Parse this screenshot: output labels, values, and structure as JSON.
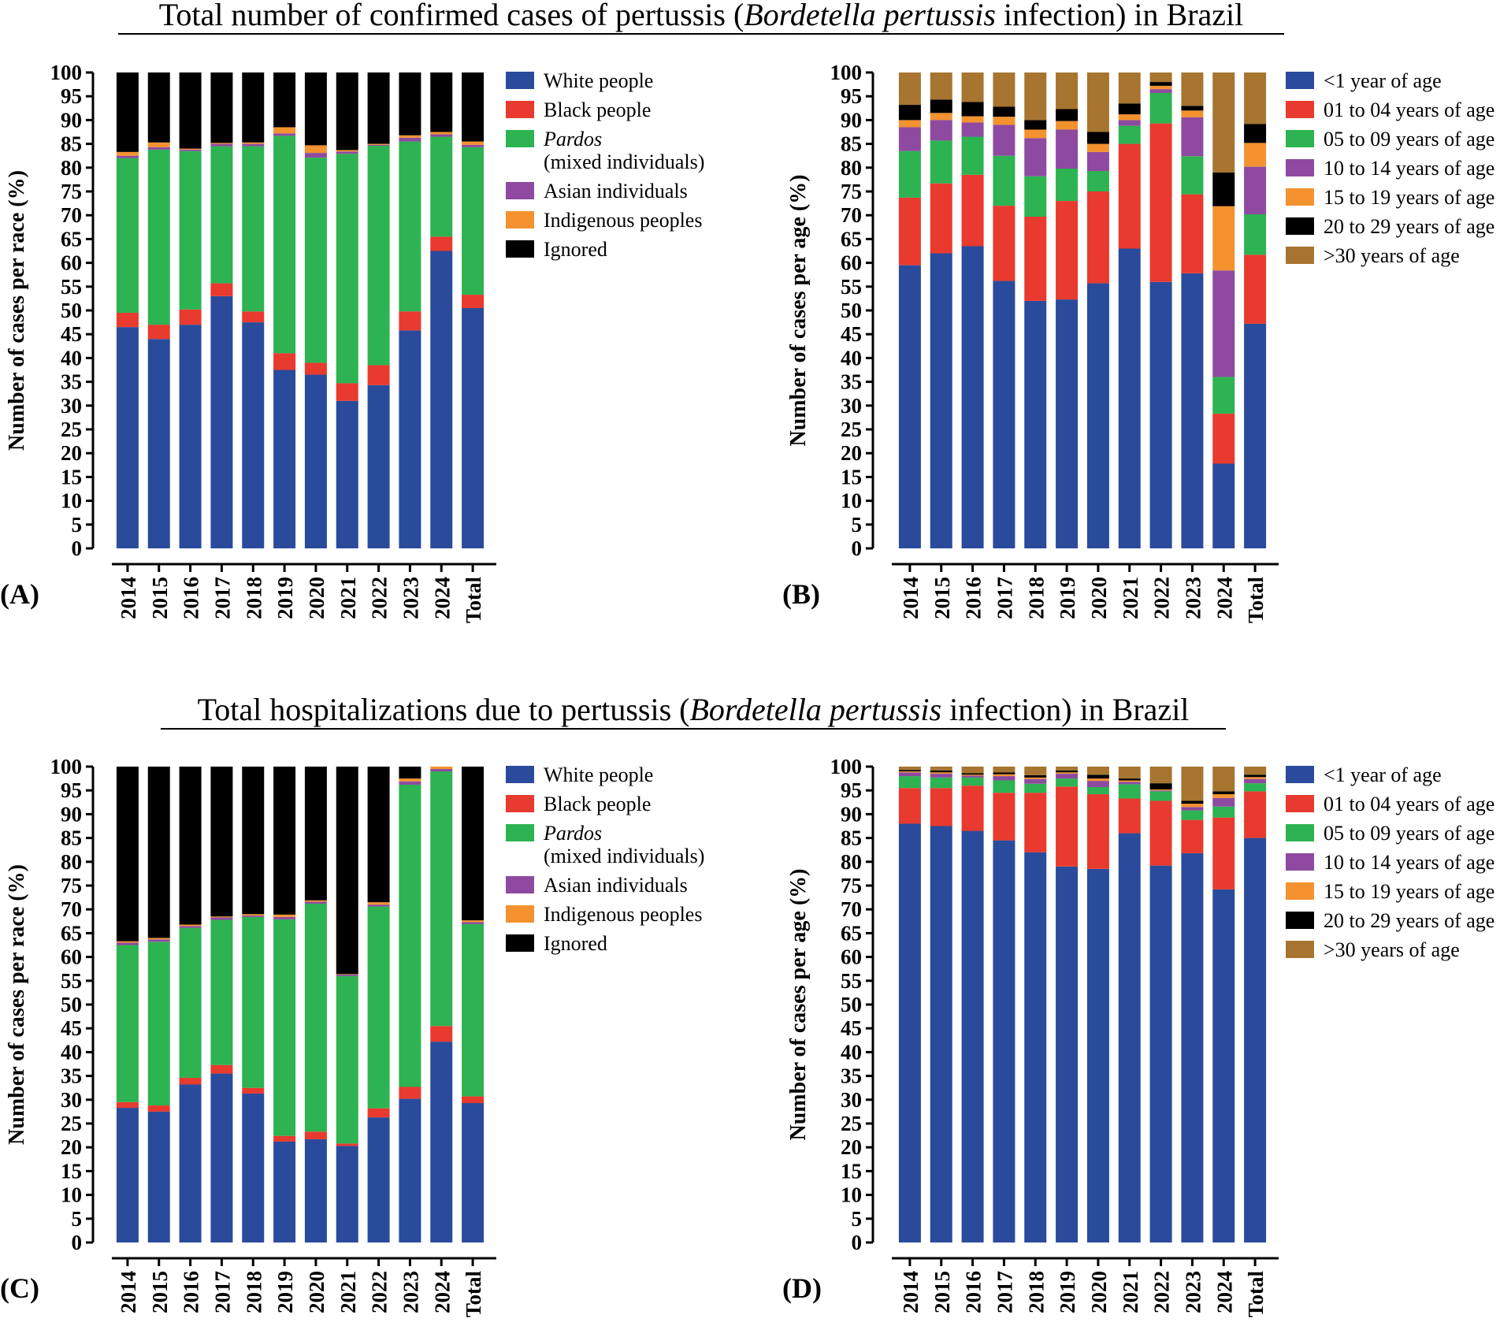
{
  "titles": {
    "top": {
      "pre": "Total number of confirmed cases of pertussis (",
      "italic": "Bordetella pertussis",
      "post": " infection) in Brazil"
    },
    "bottom": {
      "pre": "Total hospitalizations due to pertussis (",
      "italic": "Bordetella pertussis",
      "post": " infection) in Brazil"
    }
  },
  "colors": {
    "race": [
      "#2a4b9b",
      "#e83a2e",
      "#2db352",
      "#8e4aa0",
      "#f3922f",
      "#000000"
    ],
    "age": [
      "#2a4b9b",
      "#e83a2e",
      "#2db352",
      "#8e4aa0",
      "#f3922f",
      "#000000",
      "#a77530"
    ]
  },
  "race_legend": [
    {
      "label": "White people",
      "italic": false
    },
    {
      "label": "Black people",
      "italic": false
    },
    {
      "label": "Pardos",
      "italic": true,
      "label2": "(mixed individuals)"
    },
    {
      "label": "Asian individuals",
      "italic": false
    },
    {
      "label": "Indigenous peoples",
      "italic": false
    },
    {
      "label": "Ignored",
      "italic": false
    }
  ],
  "age_legend": [
    {
      "label": "<1 year of age"
    },
    {
      "label": "01 to 04 years of age"
    },
    {
      "label": "05 to 09 years of age"
    },
    {
      "label": "10 to 14 years of age"
    },
    {
      "label": "15 to 19 years of age"
    },
    {
      "label": "20 to 29 years of age"
    },
    {
      "label": ">30 years of age"
    }
  ],
  "chart_data": [
    {
      "panel": "(A)",
      "type": "bar",
      "stacked": true,
      "legend_set": "race",
      "ylabel": "Number of cases per race (%)",
      "ylim": [
        0,
        100
      ],
      "yticks": [
        0,
        5,
        10,
        15,
        20,
        25,
        30,
        35,
        40,
        45,
        50,
        55,
        60,
        65,
        70,
        75,
        80,
        85,
        90,
        95,
        100
      ],
      "categories": [
        "2014",
        "2015",
        "2016",
        "2017",
        "2018",
        "2019",
        "2020",
        "2021",
        "2022",
        "2023",
        "2024",
        "Total"
      ],
      "series": [
        {
          "name": "White people",
          "values": [
            46.5,
            44,
            47,
            53,
            47.5,
            37.5,
            36.5,
            31,
            34.3,
            45.8,
            62.5,
            50.5
          ]
        },
        {
          "name": "Black people",
          "values": [
            3,
            3,
            3.2,
            2.7,
            2.3,
            3.5,
            2.5,
            3.7,
            4.2,
            4,
            3,
            2.8
          ]
        },
        {
          "name": "Pardos (mixed individuals)",
          "values": [
            32.5,
            36.8,
            33.3,
            28.8,
            34.7,
            45.7,
            43.1,
            48.2,
            46.1,
            35.7,
            21,
            31
          ]
        },
        {
          "name": "Asian individuals",
          "values": [
            0.5,
            0.5,
            0.3,
            0.5,
            0.5,
            0.5,
            1,
            0.5,
            0.2,
            0.8,
            0.5,
            0.5
          ]
        },
        {
          "name": "Indigenous peoples",
          "values": [
            0.8,
            1,
            0.2,
            0.2,
            0.3,
            1.3,
            1.6,
            0.3,
            0.2,
            0.5,
            0.5,
            0.7
          ]
        },
        {
          "name": "Ignored",
          "values": [
            16.7,
            14.7,
            16,
            14.8,
            14.7,
            11.5,
            15.3,
            16.3,
            15,
            13.2,
            12.5,
            14.5
          ]
        }
      ]
    },
    {
      "panel": "(B)",
      "type": "bar",
      "stacked": true,
      "legend_set": "age",
      "ylabel": "Number of cases per age (%)",
      "ylim": [
        0,
        100
      ],
      "yticks": [
        0,
        5,
        10,
        15,
        20,
        25,
        30,
        35,
        40,
        45,
        50,
        55,
        60,
        65,
        70,
        75,
        80,
        85,
        90,
        95,
        100
      ],
      "categories": [
        "2014",
        "2015",
        "2016",
        "2017",
        "2018",
        "2019",
        "2020",
        "2021",
        "2022",
        "2023",
        "2024",
        "Total"
      ],
      "series": [
        {
          "name": "<1 year of age",
          "values": [
            59.5,
            62,
            63.5,
            56.2,
            52,
            52.3,
            55.7,
            63,
            56,
            57.8,
            17.8,
            47.2
          ]
        },
        {
          "name": "01 to 04 years of age",
          "values": [
            14.2,
            14.7,
            15,
            15.8,
            17.7,
            20.7,
            19.3,
            22,
            33.3,
            16.6,
            10.5,
            14.5
          ]
        },
        {
          "name": "05 to 09 years of age",
          "values": [
            9.8,
            9,
            8,
            10.5,
            8.5,
            6.8,
            4.3,
            3.8,
            6.4,
            8,
            7.7,
            8.5
          ]
        },
        {
          "name": "10 to 14 years of age",
          "values": [
            5,
            4.3,
            3,
            6.5,
            8,
            8.2,
            4,
            1.2,
            0.8,
            8.2,
            22.4,
            10
          ]
        },
        {
          "name": "15 to 19 years of age",
          "values": [
            1.5,
            1.5,
            1.3,
            1.7,
            1.8,
            1.8,
            1.7,
            1.2,
            0.7,
            1.4,
            13.5,
            5
          ]
        },
        {
          "name": "20 to 29 years of age",
          "values": [
            3.2,
            2.8,
            3,
            2.1,
            2,
            2.5,
            2.5,
            2.3,
            0.8,
            1,
            7.1,
            4
          ]
        },
        {
          "name": ">30 years of age",
          "values": [
            6.8,
            5.7,
            6.2,
            7.2,
            10,
            7.7,
            12.5,
            6.5,
            2,
            7,
            21,
            10.8
          ]
        }
      ]
    },
    {
      "panel": "(C)",
      "type": "bar",
      "stacked": true,
      "legend_set": "race",
      "ylabel": "Number of cases per race (%)",
      "ylim": [
        0,
        100
      ],
      "yticks": [
        0,
        5,
        10,
        15,
        20,
        25,
        30,
        35,
        40,
        45,
        50,
        55,
        60,
        65,
        70,
        75,
        80,
        85,
        90,
        95,
        100
      ],
      "categories": [
        "2014",
        "2015",
        "2016",
        "2017",
        "2018",
        "2019",
        "2020",
        "2021",
        "2022",
        "2023",
        "2024",
        "Total"
      ],
      "series": [
        {
          "name": "White people",
          "values": [
            28.3,
            27.5,
            33.2,
            35.5,
            31.3,
            21.2,
            21.7,
            20.3,
            26.3,
            30.2,
            42.2,
            29.3
          ]
        },
        {
          "name": "Black people",
          "values": [
            1.2,
            1.3,
            1.4,
            1.8,
            1.2,
            1.2,
            1.6,
            0.5,
            1.9,
            2.5,
            3.3,
            1.4
          ]
        },
        {
          "name": "Pardos (mixed individuals)",
          "values": [
            33,
            34.4,
            31.5,
            30.5,
            35.9,
            45.5,
            47.9,
            35.2,
            42.4,
            63.5,
            53.5,
            36.2
          ]
        },
        {
          "name": "Asian individuals",
          "values": [
            0.5,
            0.5,
            0.4,
            0.5,
            0.3,
            0.5,
            0.4,
            0.3,
            0.4,
            0.7,
            0.5,
            0.4
          ]
        },
        {
          "name": "Indigenous peoples",
          "values": [
            0.3,
            0.3,
            0.3,
            0.2,
            0.3,
            0.5,
            0.3,
            0.1,
            0.5,
            0.6,
            0.5,
            0.4
          ]
        },
        {
          "name": "Ignored",
          "values": [
            36.7,
            36,
            33.2,
            31.5,
            31,
            31.1,
            28.1,
            43.6,
            28.5,
            2.5,
            0,
            32.3
          ]
        }
      ]
    },
    {
      "panel": "(D)",
      "type": "bar",
      "stacked": true,
      "legend_set": "age",
      "ylabel": "Number of cases per age (%)",
      "ylim": [
        0,
        100
      ],
      "yticks": [
        0,
        5,
        10,
        15,
        20,
        25,
        30,
        35,
        40,
        45,
        50,
        55,
        60,
        65,
        70,
        75,
        80,
        85,
        90,
        95,
        100
      ],
      "categories": [
        "2014",
        "2015",
        "2016",
        "2017",
        "2018",
        "2019",
        "2020",
        "2021",
        "2022",
        "2023",
        "2024",
        "Total"
      ],
      "series": [
        {
          "name": "<1 year of age",
          "values": [
            88,
            87.5,
            86.5,
            84.5,
            82,
            79,
            78.5,
            86,
            79.2,
            81.8,
            74.2,
            85
          ]
        },
        {
          "name": "01 to 04 years of age",
          "values": [
            7.5,
            8,
            9.5,
            10,
            12.5,
            16.8,
            15.7,
            7.3,
            13.6,
            7,
            15.1,
            9.8
          ]
        },
        {
          "name": "05 to 09 years of age",
          "values": [
            2.5,
            2.2,
            1.7,
            2.6,
            1.9,
            1.7,
            1.5,
            3,
            2,
            2,
            2.3,
            1.7
          ]
        },
        {
          "name": "10 to 14 years of age",
          "values": [
            0.8,
            0.8,
            0.4,
            0.9,
            1,
            1,
            1.3,
            0.5,
            0.2,
            0.7,
            1.8,
            0.9
          ]
        },
        {
          "name": "15 to 19 years of age",
          "values": [
            0.2,
            0.3,
            0.2,
            0.4,
            0.3,
            0.3,
            0.5,
            0.3,
            0.2,
            0.7,
            0.8,
            0.4
          ]
        },
        {
          "name": "20 to 29 years of age",
          "values": [
            0.3,
            0.4,
            0.3,
            0.4,
            0.5,
            0.4,
            0.8,
            0.4,
            1.3,
            0.6,
            0.6,
            0.5
          ]
        },
        {
          "name": ">30 years of age",
          "values": [
            0.7,
            0.8,
            1.4,
            1.2,
            1.8,
            0.8,
            1.7,
            2.5,
            3.5,
            7.2,
            5.2,
            1.7
          ]
        }
      ]
    }
  ]
}
